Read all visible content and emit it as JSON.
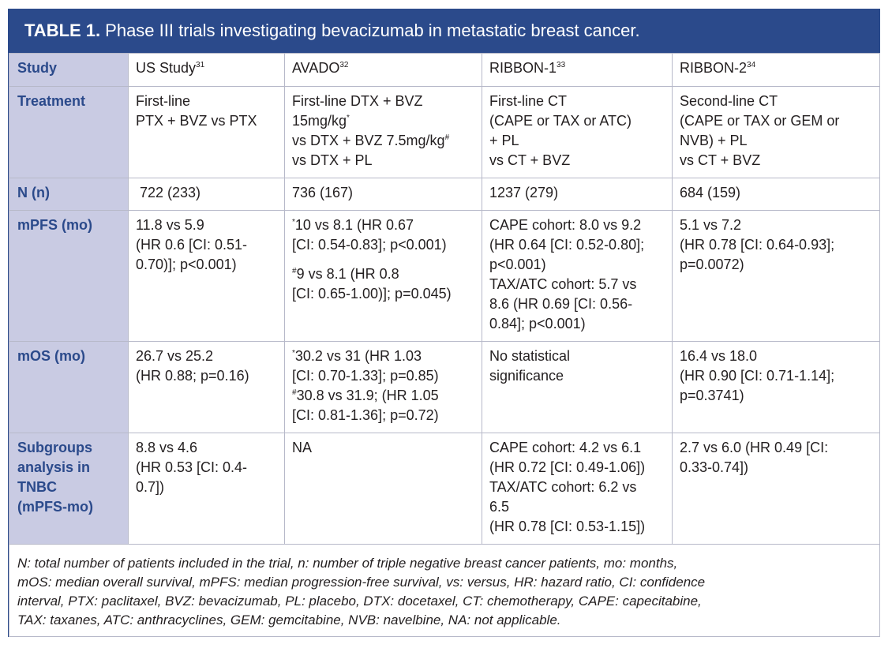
{
  "title": {
    "label": "TABLE 1.",
    "text": "Phase III trials investigating bevacizumab in metastatic breast cancer."
  },
  "rows": {
    "study": {
      "header": "Study",
      "c1": {
        "name": "US Study",
        "ref": "31"
      },
      "c2": {
        "name": "AVADO",
        "ref": "32"
      },
      "c3": {
        "name": "RIBBON-1",
        "ref": "33"
      },
      "c4": {
        "name": "RIBBON-2",
        "ref": "34"
      }
    },
    "treatment": {
      "header": "Treatment",
      "c1": [
        "First-line",
        "PTX + BVZ vs PTX"
      ],
      "c2": {
        "l1": "First-line DTX + BVZ",
        "l2": "15mg/kg",
        "l2sup": "*",
        "l3": "vs DTX + BVZ 7.5mg/kg",
        "l3sup": "#",
        "l4": "vs DTX + PL"
      },
      "c3": [
        "First-line CT",
        "(CAPE or TAX or ATC)",
        "+ PL",
        "vs CT + BVZ"
      ],
      "c4": [
        "Second-line CT",
        "(CAPE or TAX or GEM or",
        "NVB) + PL",
        "vs CT + BVZ"
      ]
    },
    "n": {
      "header": "N (n)",
      "c1": "722 (233)",
      "c2": "736 (167)",
      "c3": "1237 (279)",
      "c4": "684 (159)"
    },
    "mpfs": {
      "header": "mPFS (mo)",
      "c1": [
        "11.8 vs 5.9",
        "(HR 0.6 [CI: 0.51-",
        "0.70)]; p<0.001)"
      ],
      "c2": {
        "a_sup": "*",
        "a1": "10 vs 8.1 (HR 0.67",
        "a2": "[CI: 0.54-0.83]; p<0.001)",
        "b_sup": "#",
        "b1": "9 vs 8.1 (HR 0.8",
        "b2": "[CI: 0.65-1.00)]; p=0.045)"
      },
      "c3": [
        "CAPE cohort: 8.0 vs 9.2",
        "(HR 0.64 [CI: 0.52-0.80];",
        "p<0.001)",
        "TAX/ATC cohort: 5.7 vs",
        "8.6 (HR 0.69 [CI: 0.56-",
        "0.84]; p<0.001)"
      ],
      "c4": [
        "5.1 vs 7.2",
        "(HR 0.78 [CI: 0.64-0.93];",
        "p=0.0072)"
      ]
    },
    "mos": {
      "header": "mOS (mo)",
      "c1": [
        "26.7 vs 25.2",
        "(HR 0.88; p=0.16)"
      ],
      "c2": {
        "a_sup": "*",
        "a1": "30.2 vs 31 (HR 1.03",
        "a2": "[CI: 0.70-1.33]; p=0.85)",
        "b_sup": "#",
        "b1": "30.8 vs 31.9; (HR 1.05",
        "b2": "[CI: 0.81-1.36]; p=0.72)"
      },
      "c3": [
        "No statistical",
        "significance"
      ],
      "c4": [
        "16.4 vs 18.0",
        "(HR 0.90 [CI: 0.71-1.14];",
        "p=0.3741)"
      ]
    },
    "subgroups": {
      "header": [
        "Subgroups",
        "analysis in",
        "TNBC",
        "(mPFS-mo)"
      ],
      "c1": [
        "8.8 vs 4.6",
        "(HR 0.53 [CI: 0.4-",
        "0.7])"
      ],
      "c2": "NA",
      "c3": [
        "CAPE cohort: 4.2 vs 6.1",
        "(HR 0.72 [CI: 0.49-1.06])",
        "TAX/ATC cohort: 6.2 vs",
        "6.5",
        "(HR 0.78 [CI: 0.53-1.15])"
      ],
      "c4": [
        "2.7 vs 6.0 (HR 0.49 [CI:",
        "0.33-0.74])"
      ]
    }
  },
  "footnote": [
    "N: total number of patients included in the trial, n: number of triple negative breast cancer patients, mo: months,",
    "mOS: median overall survival, mPFS: median progression-free survival, vs: versus, HR: hazard ratio, CI: confidence",
    "interval, PTX: paclitaxel, BVZ: bevacizumab, PL: placebo, DTX: docetaxel, CT: chemotherapy, CAPE: capecitabine,",
    "TAX: taxanes, ATC: anthracyclines, GEM: gemcitabine, NVB: navelbine, NA: not applicable."
  ]
}
